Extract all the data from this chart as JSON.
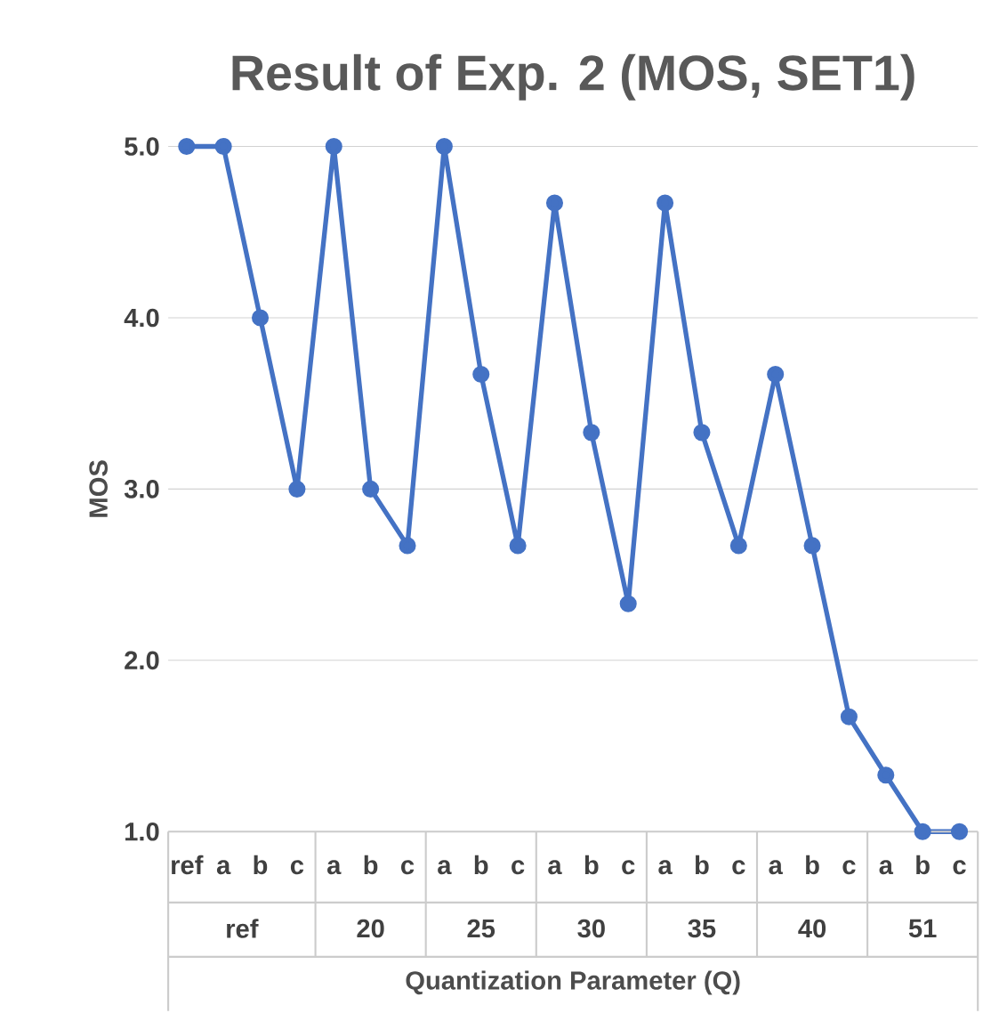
{
  "chart_data": {
    "type": "line",
    "title": "Result of Exp. 2 (MOS, SET1)",
    "xlabel": "Quantization Parameter (Q)",
    "ylabel": "MOS",
    "categories": [
      "ref",
      "a",
      "b",
      "c",
      "a",
      "b",
      "c",
      "a",
      "b",
      "c",
      "a",
      "b",
      "c",
      "a",
      "b",
      "c",
      "a",
      "b",
      "c",
      "a",
      "b",
      "c"
    ],
    "values": [
      5,
      5,
      4,
      3,
      5,
      3,
      2.67,
      5,
      3.67,
      2.67,
      4.67,
      3.33,
      2.33,
      4.67,
      3.33,
      2.67,
      3.67,
      2.67,
      1.67,
      1.33,
      1,
      1
    ],
    "color": "#4472c4",
    "marker": "circle",
    "line_style": "solid",
    "grid": "y",
    "ylim": [
      1,
      5
    ],
    "yticks": [
      {
        "value": 1,
        "label": "1.0"
      },
      {
        "value": 2,
        "label": "2.0"
      },
      {
        "value": 3,
        "label": "3.0"
      },
      {
        "value": 4,
        "label": "4.0"
      },
      {
        "value": 5,
        "label": "5.0"
      }
    ],
    "annotations": [
      "ref",
      "20",
      "25",
      "30",
      "35",
      "40",
      "51"
    ]
  }
}
